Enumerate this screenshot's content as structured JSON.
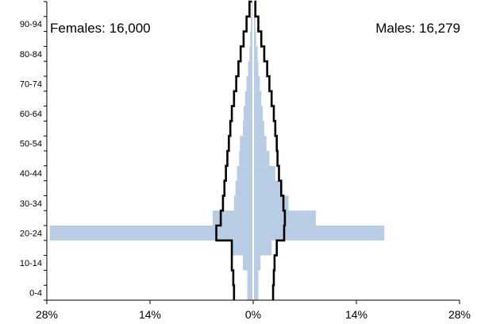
{
  "chart_data": {
    "type": "bar",
    "subtype": "population-pyramid",
    "title": "",
    "xlabel": "",
    "ylabel": "",
    "annotations": {
      "females": "Females: 16,000",
      "males": "Males: 16,279"
    },
    "y_tick_labels": [
      "0-4",
      "10-14",
      "20-24",
      "30-34",
      "40-44",
      "50-54",
      "60-64",
      "70-74",
      "80-84",
      "90-94"
    ],
    "x_tick_labels": [
      "28%",
      "14%",
      "0%",
      "14%",
      "28%"
    ],
    "x_ticks": [
      -28,
      -14,
      0,
      14,
      28
    ],
    "xlim": [
      -28,
      28
    ],
    "age_groups": [
      "0-4",
      "5-9",
      "10-14",
      "15-19",
      "20-24",
      "25-29",
      "30-34",
      "35-39",
      "40-44",
      "45-49",
      "50-54",
      "55-59",
      "60-64",
      "65-69",
      "70-74",
      "75-79",
      "80-84",
      "85-89",
      "90-94",
      "95-99"
    ],
    "series": [
      {
        "role": "bars",
        "side": "female",
        "color": "#b8cce4",
        "values": [
          0.8,
          0.8,
          1.4,
          2.8,
          27.6,
          5.5,
          2.6,
          2.4,
          2.2,
          1.9,
          1.8,
          1.4,
          1.3,
          1.1,
          0.9,
          0.7,
          0.5,
          0.4,
          0.3,
          0.2
        ]
      },
      {
        "role": "bars",
        "side": "male",
        "color": "#b8cce4",
        "values": [
          0.7,
          0.7,
          1.0,
          2.5,
          17.8,
          8.5,
          4.8,
          3.8,
          3.0,
          2.2,
          1.8,
          1.5,
          1.3,
          1.1,
          0.9,
          0.7,
          0.6,
          0.4,
          0.3,
          0.2
        ]
      },
      {
        "role": "outline",
        "side": "female",
        "color": "#000000",
        "values": [
          2.6,
          2.7,
          2.9,
          2.9,
          5.0,
          4.4,
          4.1,
          3.9,
          3.7,
          3.5,
          3.3,
          3.1,
          2.9,
          2.6,
          2.3,
          2.0,
          1.7,
          1.3,
          0.9,
          0.5
        ]
      },
      {
        "role": "outline",
        "side": "male",
        "color": "#000000",
        "values": [
          2.7,
          2.8,
          2.9,
          3.2,
          4.2,
          4.3,
          4.1,
          3.8,
          3.5,
          3.3,
          3.2,
          3.0,
          2.8,
          2.5,
          2.2,
          1.9,
          1.5,
          1.1,
          0.7,
          0.3
        ]
      }
    ],
    "colors": {
      "bars": "#b8cce4",
      "outline": "#000000",
      "axis": "#000000",
      "center_line": "#ffffff"
    },
    "grid": false
  }
}
